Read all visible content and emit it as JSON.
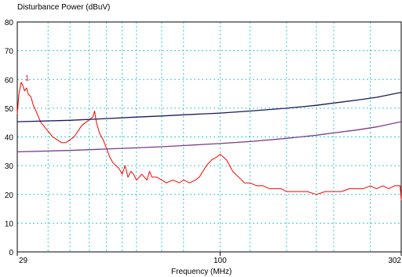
{
  "chart_data": {
    "type": "line",
    "title": "Disturbance Power (dBuV)",
    "xlabel": "Frequency (MHz)",
    "ylabel": "Disturbance Power (dBuV)",
    "x_scale": "log",
    "xlim": [
      29,
      302
    ],
    "ylim": [
      0,
      80
    ],
    "x_tick_labels": [
      {
        "value": 29,
        "label": "29"
      },
      {
        "value": 100,
        "label": "100"
      },
      {
        "value": 302,
        "label": "302"
      }
    ],
    "y_tick_labels": [
      {
        "value": 0,
        "label": "0"
      },
      {
        "value": 10,
        "label": "10"
      },
      {
        "value": 20,
        "label": "20"
      },
      {
        "value": 30,
        "label": "30"
      },
      {
        "value": 40,
        "label": "40"
      },
      {
        "value": 50,
        "label": "50"
      },
      {
        "value": 60,
        "label": "60"
      },
      {
        "value": 70,
        "label": "70"
      },
      {
        "value": 80,
        "label": "80"
      }
    ],
    "x_grid_values": [
      29,
      35,
      40,
      45,
      50,
      55,
      60,
      70,
      80,
      100,
      120,
      150,
      180,
      200,
      250,
      302
    ],
    "y_grid_values": [
      10,
      20,
      30,
      40,
      50,
      60,
      70
    ],
    "grid": true,
    "marker_label": "1",
    "marker_x": 30,
    "marker_y": 60,
    "series": [
      {
        "color": "#ff0000",
        "x": [
          29,
          29.3,
          29.7,
          30,
          30.3,
          30.7,
          31,
          31.5,
          32,
          32.5,
          33,
          33.5,
          34,
          35,
          36,
          37,
          38,
          39,
          40,
          41,
          42,
          43,
          44,
          45,
          46,
          46.5,
          47,
          47.5,
          48,
          49,
          50,
          51,
          52,
          53,
          54,
          55,
          56,
          57,
          58,
          59,
          60,
          61,
          62,
          63,
          64,
          65,
          66,
          68,
          70,
          72,
          75,
          78,
          80,
          83,
          86,
          88,
          90,
          92,
          95,
          98,
          100,
          102,
          104,
          106,
          108,
          110,
          112,
          114,
          116,
          118,
          120,
          125,
          130,
          135,
          140,
          145,
          150,
          160,
          170,
          180,
          190,
          200,
          210,
          220,
          230,
          240,
          250,
          260,
          270,
          280,
          290,
          300,
          302
        ],
        "y": [
          48,
          55,
          59,
          58,
          56,
          57,
          55,
          54,
          51,
          49,
          47,
          45,
          44,
          42,
          40,
          39,
          38,
          38,
          39,
          40,
          42,
          44,
          45,
          46,
          47,
          49,
          45,
          43,
          41,
          39,
          36,
          33,
          31,
          30,
          29,
          27,
          30,
          26,
          28,
          27,
          25,
          26,
          27,
          26,
          25,
          28,
          26,
          26,
          25,
          24,
          25,
          24,
          25,
          24,
          25,
          26,
          28,
          30,
          32,
          33,
          34,
          33,
          32,
          30,
          28,
          27,
          26,
          25,
          24,
          24,
          24,
          23,
          23,
          22,
          22,
          22,
          21,
          21,
          21,
          20,
          21,
          21,
          21,
          22,
          22,
          22,
          23,
          22,
          23,
          22,
          23,
          23,
          18
        ]
      },
      {
        "color": "#1a1a5c",
        "x": [
          29,
          40,
          50,
          60,
          70,
          80,
          100,
          120,
          150,
          180,
          200,
          230,
          260,
          302
        ],
        "y": [
          45.3,
          45.8,
          46.4,
          46.9,
          47.3,
          47.7,
          48.3,
          49,
          50,
          51,
          51.8,
          52.8,
          53.8,
          55.5
        ]
      },
      {
        "color": "#7a3a8c",
        "x": [
          29,
          40,
          50,
          60,
          70,
          80,
          100,
          120,
          150,
          180,
          200,
          230,
          260,
          302
        ],
        "y": [
          34.8,
          35.3,
          35.8,
          36.2,
          36.6,
          37,
          37.7,
          38.4,
          39.5,
          40.6,
          41.4,
          42.4,
          43.5,
          45.3
        ]
      }
    ]
  }
}
